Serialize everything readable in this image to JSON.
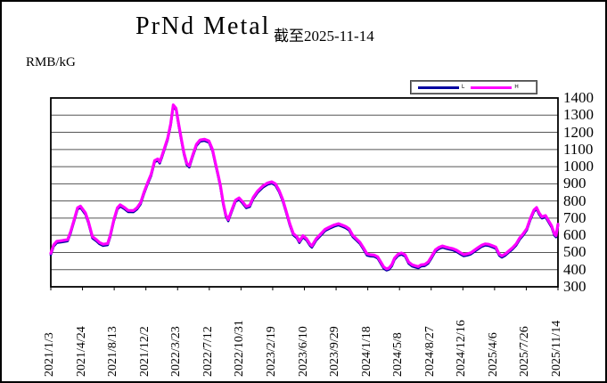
{
  "window": {
    "background": "#ffffff",
    "frame_border_color": "#000000"
  },
  "header": {
    "title": "PrNd Metal",
    "as_of": "截至2025-11-14",
    "unit_label": "RMB/kG"
  },
  "legend": {
    "items": [
      {
        "label": "L",
        "color": "#0000A0"
      },
      {
        "label": "H",
        "color": "#FF00FF"
      }
    ]
  },
  "chart_data": {
    "type": "line",
    "title": "PrNd Metal",
    "subtitle": "截至2025-11-14",
    "ylabel": "RMB/kG",
    "ylim": [
      300,
      1400
    ],
    "yticks": [
      1400,
      1300,
      1200,
      1100,
      1000,
      900,
      800,
      700,
      600,
      500,
      400,
      300
    ],
    "grid": "horizontal, every 100",
    "legend_position": "top-right",
    "xtick_labels": [
      "2021/1/3",
      "2021/4/24",
      "2021/8/13",
      "2021/12/2",
      "2022/3/23",
      "2022/7/12",
      "2022/10/31",
      "2023/2/19",
      "2023/6/10",
      "2023/9/29",
      "2024/1/18",
      "2024/5/8",
      "2024/8/27",
      "2024/12/16",
      "2025/4/6",
      "2025/7/26",
      "2025/11/14"
    ],
    "x_unit": "weeks since 2021-01-03",
    "x_range": [
      0,
      256
    ],
    "x": [
      0,
      1.5,
      3,
      6,
      8.5,
      10,
      12,
      13.5,
      15,
      17.5,
      19,
      21,
      23,
      24.6,
      26.4,
      28.7,
      30,
      31.8,
      33.6,
      35,
      37.2,
      39,
      41.7,
      43.5,
      45.3,
      47,
      48.8,
      50.6,
      52.4,
      54,
      55,
      56,
      58,
      59,
      60.5,
      61.8,
      63.2,
      64.5,
      65.9,
      67.2,
      68.6,
      69.9,
      71.7,
      73.5,
      75.3,
      77.5,
      79.8,
      81.6,
      82.9,
      84.3,
      85.6,
      87,
      88.3,
      89.6,
      91.4,
      93.2,
      95,
      96.8,
      98.6,
      100.4,
      102.2,
      104.4,
      107.1,
      109.4,
      111.6,
      113.4,
      115.2,
      117,
      118.8,
      120.6,
      122.4,
      124.2,
      125.5,
      127.3,
      129.1,
      130.9,
      131.8,
      134,
      136.3,
      138.5,
      140.7,
      143,
      145.2,
      147,
      148.8,
      150.6,
      152.4,
      154.2,
      156,
      157.8,
      159.6,
      161.4,
      163.2,
      165,
      166.8,
      168.1,
      169.5,
      170.8,
      172.2,
      173.5,
      175.3,
      177,
      178.8,
      180.6,
      182.4,
      184.2,
      185.5,
      186.9,
      188.7,
      190.5,
      192.3,
      194.1,
      195.9,
      197.7,
      199.4,
      201.2,
      203,
      204.8,
      206.6,
      208.4,
      210.2,
      212,
      213.8,
      215.6,
      217.4,
      219.2,
      221,
      222.8,
      224.6,
      226.4,
      227.7,
      229.5,
      231.3,
      233.1,
      234.9,
      236.7,
      238.5,
      240.3,
      242.1,
      243.9,
      245.2,
      246.5,
      247.9,
      249.7,
      251,
      252.8,
      254.1,
      255,
      256
    ],
    "values": [
      495,
      545,
      565,
      570,
      575,
      620,
      700,
      760,
      770,
      730,
      680,
      592,
      575,
      558,
      548,
      552,
      600,
      690,
      760,
      778,
      762,
      745,
      744,
      760,
      790,
      850,
      905,
      955,
      1035,
      1045,
      1028,
      1060,
      1130,
      1165,
      1250,
      1360,
      1340,
      1250,
      1160,
      1080,
      1020,
      1005,
      1070,
      1130,
      1155,
      1160,
      1150,
      1100,
      1030,
      960,
      890,
      790,
      720,
      692,
      750,
      805,
      818,
      795,
      768,
      775,
      822,
      858,
      888,
      905,
      912,
      900,
      862,
      810,
      740,
      668,
      610,
      592,
      565,
      598,
      580,
      548,
      538,
      580,
      608,
      635,
      648,
      660,
      668,
      660,
      652,
      638,
      600,
      580,
      560,
      528,
      492,
      487,
      485,
      475,
      440,
      415,
      405,
      410,
      430,
      467,
      490,
      497,
      487,
      445,
      428,
      422,
      418,
      428,
      430,
      445,
      478,
      515,
      530,
      538,
      532,
      527,
      522,
      513,
      500,
      488,
      492,
      498,
      513,
      528,
      542,
      550,
      548,
      540,
      532,
      490,
      480,
      492,
      510,
      528,
      550,
      585,
      610,
      640,
      700,
      748,
      762,
      730,
      708,
      715,
      690,
      655,
      610,
      598,
      665
    ],
    "series": [
      {
        "name": "L",
        "color": "#0000A0",
        "stroke_width": 2.6,
        "note": "navy line drawn beneath, same values"
      },
      {
        "name": "H",
        "color": "#FF00FF",
        "stroke_width": 3.2,
        "note": "magenta line on top, same values"
      }
    ]
  }
}
